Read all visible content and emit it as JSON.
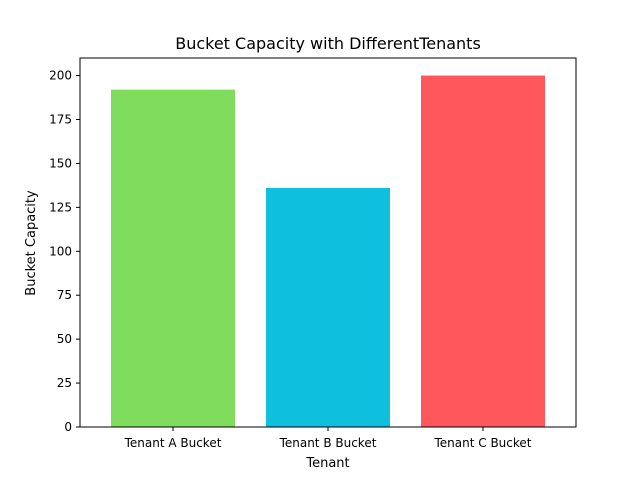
{
  "chart_data": {
    "type": "bar",
    "title": "Bucket Capacity with DifferentTenants",
    "xlabel": "Tenant",
    "ylabel": "Bucket Capacity",
    "categories": [
      "Tenant A Bucket",
      "Tenant B Bucket",
      "Tenant C Bucket"
    ],
    "values": [
      192,
      136,
      200
    ],
    "colors": [
      "#80dc5c",
      "#0ebfde",
      "#ff575c"
    ],
    "ylim": [
      0,
      210
    ],
    "yticks": [
      0,
      25,
      50,
      75,
      100,
      125,
      150,
      175,
      200
    ],
    "grid": false,
    "legend": false
  }
}
